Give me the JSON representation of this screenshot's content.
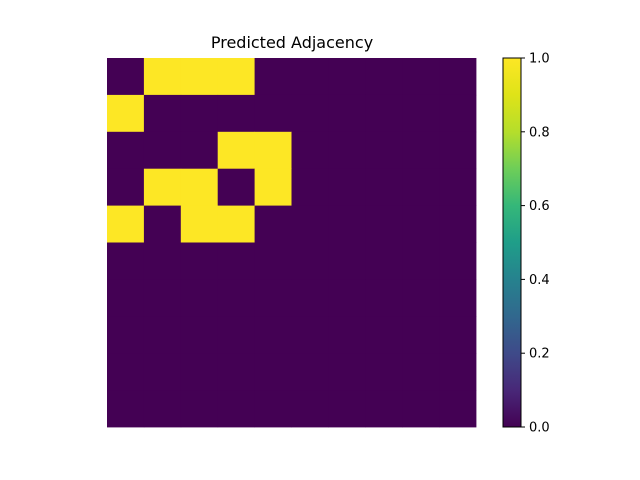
{
  "chart_data": {
    "type": "heatmap",
    "title": "Predicted Adjacency",
    "xlabel": "",
    "ylabel": "",
    "grid": false,
    "axes_visible": false,
    "rows": 10,
    "cols": 10,
    "matrix": [
      [
        0,
        1,
        1,
        1,
        0,
        0,
        0,
        0,
        0,
        0
      ],
      [
        1,
        0,
        0,
        0,
        0,
        0,
        0,
        0,
        0,
        0
      ],
      [
        0,
        0,
        0,
        1,
        1,
        0,
        0,
        0,
        0,
        0
      ],
      [
        0,
        1,
        1,
        0,
        1,
        0,
        0,
        0,
        0,
        0
      ],
      [
        1,
        0,
        1,
        1,
        0,
        0,
        0,
        0,
        0,
        0
      ],
      [
        0,
        0,
        0,
        0,
        0,
        0,
        0,
        0,
        0,
        0
      ],
      [
        0,
        0,
        0,
        0,
        0,
        0,
        0,
        0,
        0,
        0
      ],
      [
        0,
        0,
        0,
        0,
        0,
        0,
        0,
        0,
        0,
        0
      ],
      [
        0,
        0,
        0,
        0,
        0,
        0,
        0,
        0,
        0,
        0
      ],
      [
        0,
        0,
        0,
        0,
        0,
        0,
        0,
        0,
        0,
        0
      ]
    ],
    "colormap": "viridis",
    "color_low": "#440154",
    "color_high": "#fde725",
    "colorbar": {
      "range": [
        0.0,
        1.0
      ],
      "ticks": [
        0.0,
        0.2,
        0.4,
        0.6,
        0.8,
        1.0
      ],
      "tick_labels": [
        "0.0",
        "0.2",
        "0.4",
        "0.6",
        "0.8",
        "1.0"
      ],
      "placement": "right"
    }
  }
}
